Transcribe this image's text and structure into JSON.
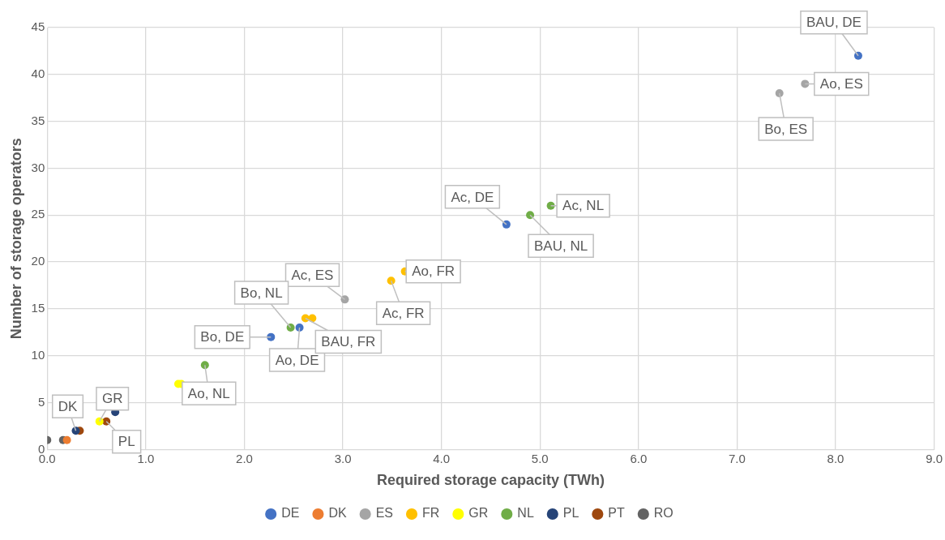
{
  "chart_data": {
    "type": "scatter",
    "xlabel": "Required storage capacity (TWh)",
    "ylabel": "Number of storage operators",
    "series": [
      {
        "name": "DE",
        "color": "#4472c4",
        "x": [
          8.23,
          4.66,
          2.56,
          2.27
        ],
        "values": [
          42,
          24,
          13,
          12
        ]
      },
      {
        "name": "DK",
        "color": "#ed7d31",
        "x": [
          0.2
        ],
        "values": [
          1
        ]
      },
      {
        "name": "ES",
        "color": "#a5a5a5",
        "x": [
          7.69,
          7.43,
          3.02
        ],
        "values": [
          39,
          38,
          16
        ]
      },
      {
        "name": "FR",
        "color": "#ffc000",
        "x": [
          3.63,
          3.49,
          2.62,
          2.69
        ],
        "values": [
          19,
          18,
          14,
          14
        ]
      },
      {
        "name": "GR",
        "color": "#ffff00",
        "x": [
          1.33,
          1.36,
          0.53
        ],
        "values": [
          7,
          7,
          3
        ]
      },
      {
        "name": "NL",
        "color": "#70ad47",
        "x": [
          5.11,
          4.9,
          2.47,
          1.6
        ],
        "values": [
          26,
          25,
          13,
          9
        ]
      },
      {
        "name": "PL",
        "color": "#264478",
        "x": [
          0.69,
          0.29
        ],
        "values": [
          4,
          2
        ]
      },
      {
        "name": "PT",
        "color": "#9e480e",
        "x": [
          0.33,
          0.6
        ],
        "values": [
          2,
          3
        ]
      },
      {
        "name": "RO",
        "color": "#636363",
        "x": [
          0,
          0.16
        ],
        "values": [
          1,
          1
        ]
      }
    ],
    "xlim": [
      0,
      9
    ],
    "xticks": [
      {
        "value": 0,
        "label": "0.0"
      },
      {
        "value": 1,
        "label": "1.0"
      },
      {
        "value": 2,
        "label": "2.0"
      },
      {
        "value": 3,
        "label": "3.0"
      },
      {
        "value": 4,
        "label": "4.0"
      },
      {
        "value": 5,
        "label": "5.0"
      },
      {
        "value": 6,
        "label": "6.0"
      },
      {
        "value": 7,
        "label": "7.0"
      },
      {
        "value": 8,
        "label": "8.0"
      },
      {
        "value": 9,
        "label": "9.0"
      }
    ],
    "ylim": [
      0,
      45
    ],
    "yticks": [
      0,
      5,
      10,
      15,
      20,
      25,
      30,
      35,
      40,
      45
    ],
    "grid": true,
    "legend": "bottom",
    "marker": "circle",
    "annotations": [
      {
        "text": "BAU, DE",
        "x": 8.23,
        "y": 42
      },
      {
        "text": "Ao, ES",
        "x": 7.69,
        "y": 39
      },
      {
        "text": "Bo, ES",
        "x": 7.43,
        "y": 38
      },
      {
        "text": "Ac, NL",
        "x": 5.11,
        "y": 26
      },
      {
        "text": "BAU, NL",
        "x": 4.9,
        "y": 25
      },
      {
        "text": "Ac, DE",
        "x": 4.66,
        "y": 24
      },
      {
        "text": "Ao, FR",
        "x": 3.63,
        "y": 19
      },
      {
        "text": "Ac, FR",
        "x": 3.49,
        "y": 18
      },
      {
        "text": "Ac, ES",
        "x": 3.02,
        "y": 16
      },
      {
        "text": "Bo, NL",
        "x": 2.47,
        "y": 13
      },
      {
        "text": "Bo, DE",
        "x": 2.27,
        "y": 12
      },
      {
        "text": "Ao, DE",
        "x": 2.56,
        "y": 13
      },
      {
        "text": "BAU, FR",
        "x": 2.62,
        "y": 14
      },
      {
        "text": "Ao, NL",
        "x": 1.6,
        "y": 9
      },
      {
        "text": "DK",
        "x": 0.29,
        "y": 2
      },
      {
        "text": "GR",
        "x": 0.53,
        "y": 3
      },
      {
        "text": "PL",
        "x": 0.6,
        "y": 3
      }
    ]
  }
}
